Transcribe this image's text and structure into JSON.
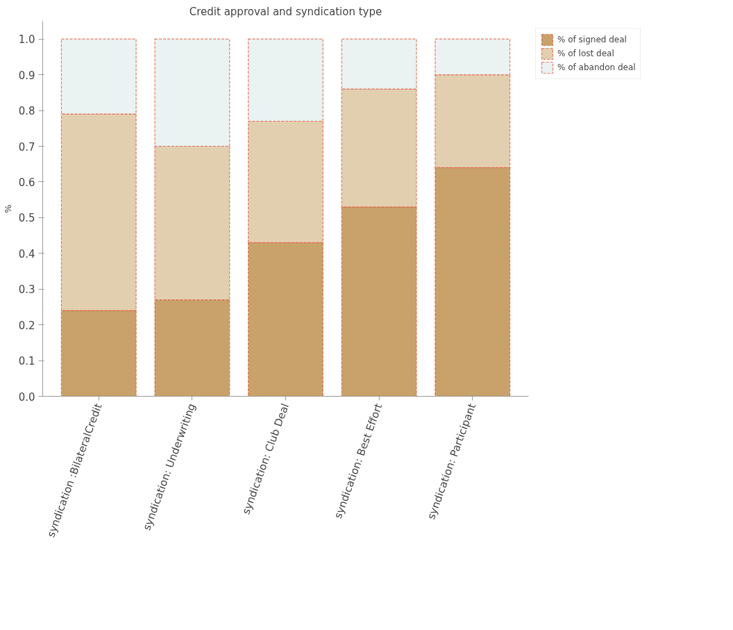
{
  "chart_data": {
    "type": "bar",
    "stacked": true,
    "title": "Credit approval and syndication type",
    "ylabel": "%",
    "categories": [
      "syndication :BilateralCredit",
      "syndication: Underwriting",
      "syndication: Club Deal",
      "syndication: Best Effort",
      "syndication: Participant"
    ],
    "series": [
      {
        "name": "% of signed deal",
        "color": "#c8a26a",
        "values": [
          0.24,
          0.27,
          0.43,
          0.53,
          0.64
        ]
      },
      {
        "name": "% of lost deal",
        "color": "#e2cfb0",
        "values": [
          0.55,
          0.43,
          0.34,
          0.33,
          0.26
        ]
      },
      {
        "name": "% of abandon deal",
        "color": "#eaf2f2",
        "values": [
          0.21,
          0.3,
          0.23,
          0.14,
          0.1
        ]
      }
    ],
    "ylim": [
      0,
      1.05
    ],
    "yticks": [
      {
        "value": 0,
        "label": "0.0"
      },
      {
        "value": 0.1,
        "label": "0.1"
      },
      {
        "value": 0.2,
        "label": "0.2"
      },
      {
        "value": 0.3,
        "label": "0.3"
      },
      {
        "value": 0.4,
        "label": "0.4"
      },
      {
        "value": 0.5,
        "label": "0.5"
      },
      {
        "value": 0.6,
        "label": "0.6"
      },
      {
        "value": 0.7,
        "label": "0.7"
      },
      {
        "value": 0.8,
        "label": "0.8"
      },
      {
        "value": 0.9,
        "label": "0.9"
      },
      {
        "value": 1,
        "label": "1.0"
      }
    ],
    "grid": false,
    "legend": "top right"
  }
}
